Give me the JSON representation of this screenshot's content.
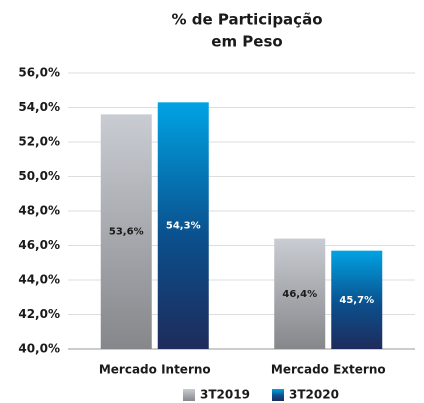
{
  "chart_data": {
    "type": "bar",
    "title": [
      "% de Participação",
      "em Peso"
    ],
    "categories": [
      "Mercado Interno",
      "Mercado Externo"
    ],
    "series": [
      {
        "name": "3T2019",
        "color": "#c9ccd2",
        "values": [
          53.6,
          46.4
        ],
        "value_labels": [
          "53,6%",
          "46,4%"
        ]
      },
      {
        "name": "3T2020",
        "color": "#00a3e3",
        "values": [
          54.3,
          45.7
        ],
        "value_labels": [
          "54,3%",
          "45,7%"
        ]
      }
    ],
    "ylim": [
      40,
      56
    ],
    "yticks": [
      {
        "value": 40,
        "label": "40,0%"
      },
      {
        "value": 42,
        "label": "42,0%"
      },
      {
        "value": 44,
        "label": "44,0%"
      },
      {
        "value": 46,
        "label": "46,0%"
      },
      {
        "value": 48,
        "label": "48,0%"
      },
      {
        "value": 50,
        "label": "50,0%"
      },
      {
        "value": 52,
        "label": "52,0%"
      },
      {
        "value": 54,
        "label": "54,0%"
      },
      {
        "value": 56,
        "label": "56,0%"
      }
    ],
    "grid": true
  }
}
